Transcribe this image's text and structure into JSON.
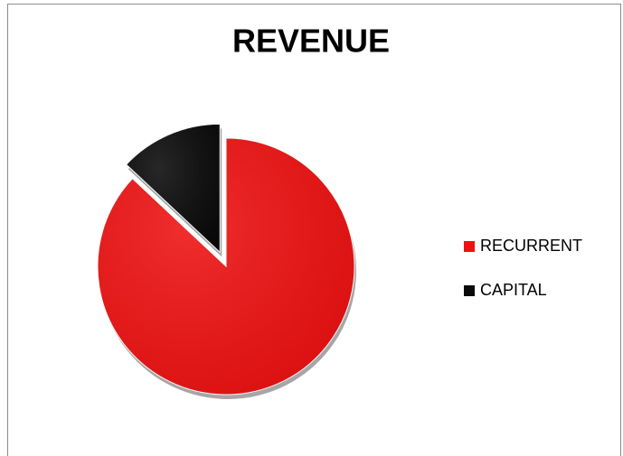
{
  "chart_data": {
    "type": "pie",
    "title": "REVENUE",
    "categories": [
      "RECURRENT",
      "CAPITAL"
    ],
    "values": [
      87,
      13
    ],
    "colors": [
      "#ee1111",
      "#0a0a0a"
    ],
    "legend": "right"
  }
}
